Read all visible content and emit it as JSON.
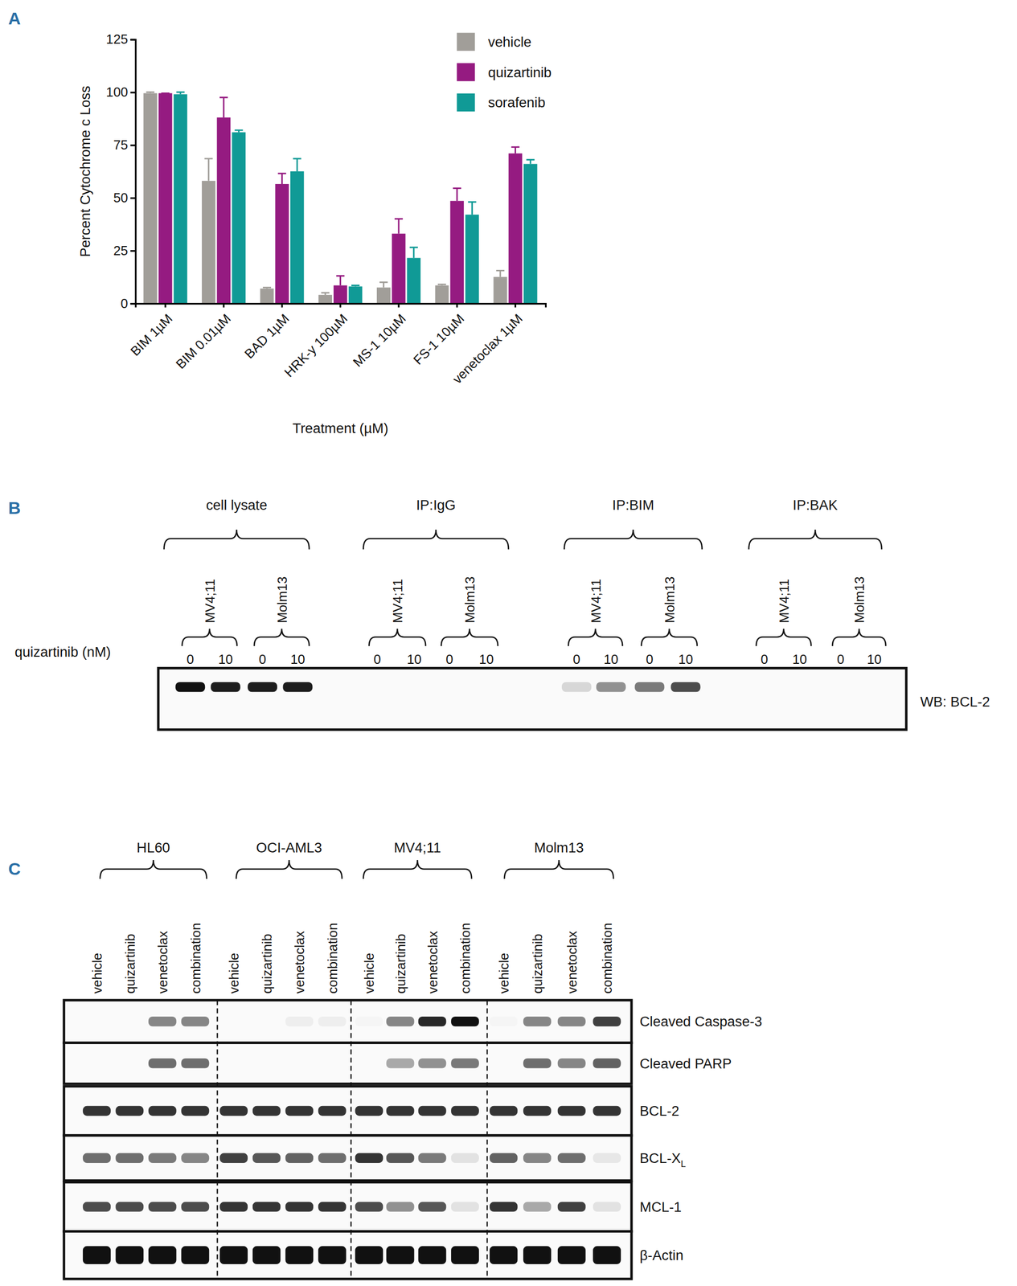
{
  "panel_labels": [
    "A",
    "B",
    "C"
  ],
  "chart_data": {
    "type": "bar",
    "categories": [
      "BIM 1µM",
      "BIM 0.01µM",
      "BAD 1µM",
      "HRK-y 100µM",
      "MS-1 10µM",
      "FS-1 10µM",
      "venetoclax 1µM"
    ],
    "series": [
      {
        "name": "vehicle",
        "color": "#a19e99",
        "values": [
          99.5,
          58,
          7,
          4,
          7.5,
          8.5,
          12.5
        ],
        "errors": [
          0.5,
          10.5,
          0.5,
          1,
          2.5,
          0.5,
          3
        ]
      },
      {
        "name": "quizartinib",
        "color": "#951b81",
        "values": [
          99.5,
          88,
          56.5,
          8.5,
          33,
          48.5,
          71
        ],
        "errors": [
          0,
          9.5,
          5,
          4.5,
          7,
          6,
          3
        ]
      },
      {
        "name": "sorafenib",
        "color": "#109a96",
        "values": [
          99,
          81,
          62.5,
          8,
          21.5,
          42,
          66
        ],
        "errors": [
          1,
          1,
          6,
          0.5,
          5,
          6,
          2
        ]
      }
    ],
    "ylabel": "Percent Cytochrome c Loss",
    "xlabel": "Treatment (µM)",
    "ylim": [
      0,
      125
    ],
    "yticks": [
      0,
      25,
      50,
      75,
      100,
      125
    ],
    "legend": "top-right"
  },
  "blot_b": {
    "row_label": "quizartinib (nM)",
    "doses": [
      0,
      10
    ],
    "groups": [
      {
        "title": "cell lysate",
        "cell_lines": [
          "MV4;11",
          "Molm13"
        ]
      },
      {
        "title": "IP:IgG",
        "cell_lines": [
          "MV4;11",
          "Molm13"
        ]
      },
      {
        "title": "IP:BIM",
        "cell_lines": [
          "MV4;11",
          "Molm13"
        ]
      },
      {
        "title": "IP:BAK",
        "cell_lines": [
          "MV4;11",
          "Molm13"
        ]
      }
    ],
    "probe": "WB: BCL-2",
    "band_intensity": [
      1,
      0.95,
      0.95,
      0.95,
      0,
      0,
      0,
      0,
      0.15,
      0.45,
      0.55,
      0.75,
      0,
      0,
      0,
      0
    ]
  },
  "blot_c": {
    "cell_lines": [
      "HL60",
      "OCI-AML3",
      "MV4;11",
      "Molm13"
    ],
    "treatments": [
      "vehicle",
      "quizartinib",
      "venetoclax",
      "combination"
    ],
    "rows": [
      {
        "label": "Cleaved Caspase-3",
        "band_intensity": [
          0,
          0,
          0.5,
          0.5,
          0,
          0,
          0.05,
          0.05,
          0.02,
          0.5,
          0.9,
          1,
          0.02,
          0.5,
          0.5,
          0.8
        ]
      },
      {
        "label": "Cleaved PARP",
        "band_intensity": [
          0,
          0,
          0.6,
          0.6,
          0,
          0,
          0,
          0,
          0,
          0.35,
          0.45,
          0.55,
          0,
          0.6,
          0.5,
          0.65
        ]
      },
      {
        "label": "BCL-2",
        "band_intensity": [
          0.85,
          0.85,
          0.85,
          0.85,
          0.85,
          0.85,
          0.85,
          0.85,
          0.85,
          0.85,
          0.85,
          0.85,
          0.85,
          0.85,
          0.85,
          0.85
        ]
      },
      {
        "label": "BCL-X",
        "subscript": "L",
        "band_intensity": [
          0.6,
          0.6,
          0.55,
          0.5,
          0.8,
          0.7,
          0.65,
          0.6,
          0.85,
          0.7,
          0.55,
          0.1,
          0.65,
          0.5,
          0.6,
          0.08
        ]
      },
      {
        "label": "MCL-1",
        "band_intensity": [
          0.75,
          0.75,
          0.75,
          0.75,
          0.85,
          0.85,
          0.85,
          0.85,
          0.75,
          0.45,
          0.7,
          0.1,
          0.85,
          0.35,
          0.8,
          0.1
        ]
      },
      {
        "label": "β-Actin",
        "band_intensity": [
          1,
          1,
          1,
          1,
          1,
          1,
          1,
          1,
          1,
          1,
          1,
          1,
          1,
          1,
          1,
          1
        ]
      }
    ]
  }
}
